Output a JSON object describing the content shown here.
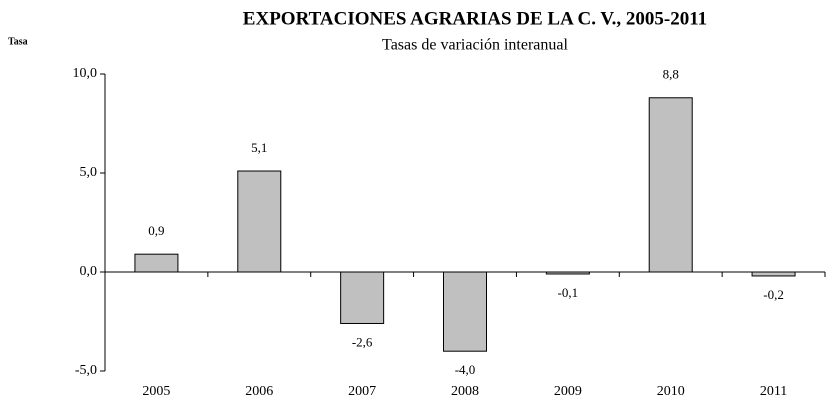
{
  "chart_data": {
    "type": "bar",
    "title": "EXPORTACIONES AGRARIAS DE LA C. V., 2005-2011",
    "subtitle": "Tasas de variación interanual",
    "y_label": "Tasa",
    "categories": [
      "2005",
      "2006",
      "2007",
      "2008",
      "2009",
      "2010",
      "2011"
    ],
    "values": [
      0.9,
      5.1,
      -2.6,
      -4.0,
      -0.1,
      8.8,
      -0.2
    ],
    "value_labels": [
      "0,9",
      "5,1",
      "-2,6",
      "-4,0",
      "-0,1",
      "8,8",
      "-0,2"
    ],
    "color": "#c0c0c0",
    "ylim": [
      -5,
      10
    ],
    "yticks": [
      {
        "value": -5,
        "label": "-5,0"
      },
      {
        "value": 0,
        "label": "0,0"
      },
      {
        "value": 5,
        "label": "5,0"
      },
      {
        "value": 10,
        "label": "10,0"
      }
    ],
    "grid": false
  }
}
